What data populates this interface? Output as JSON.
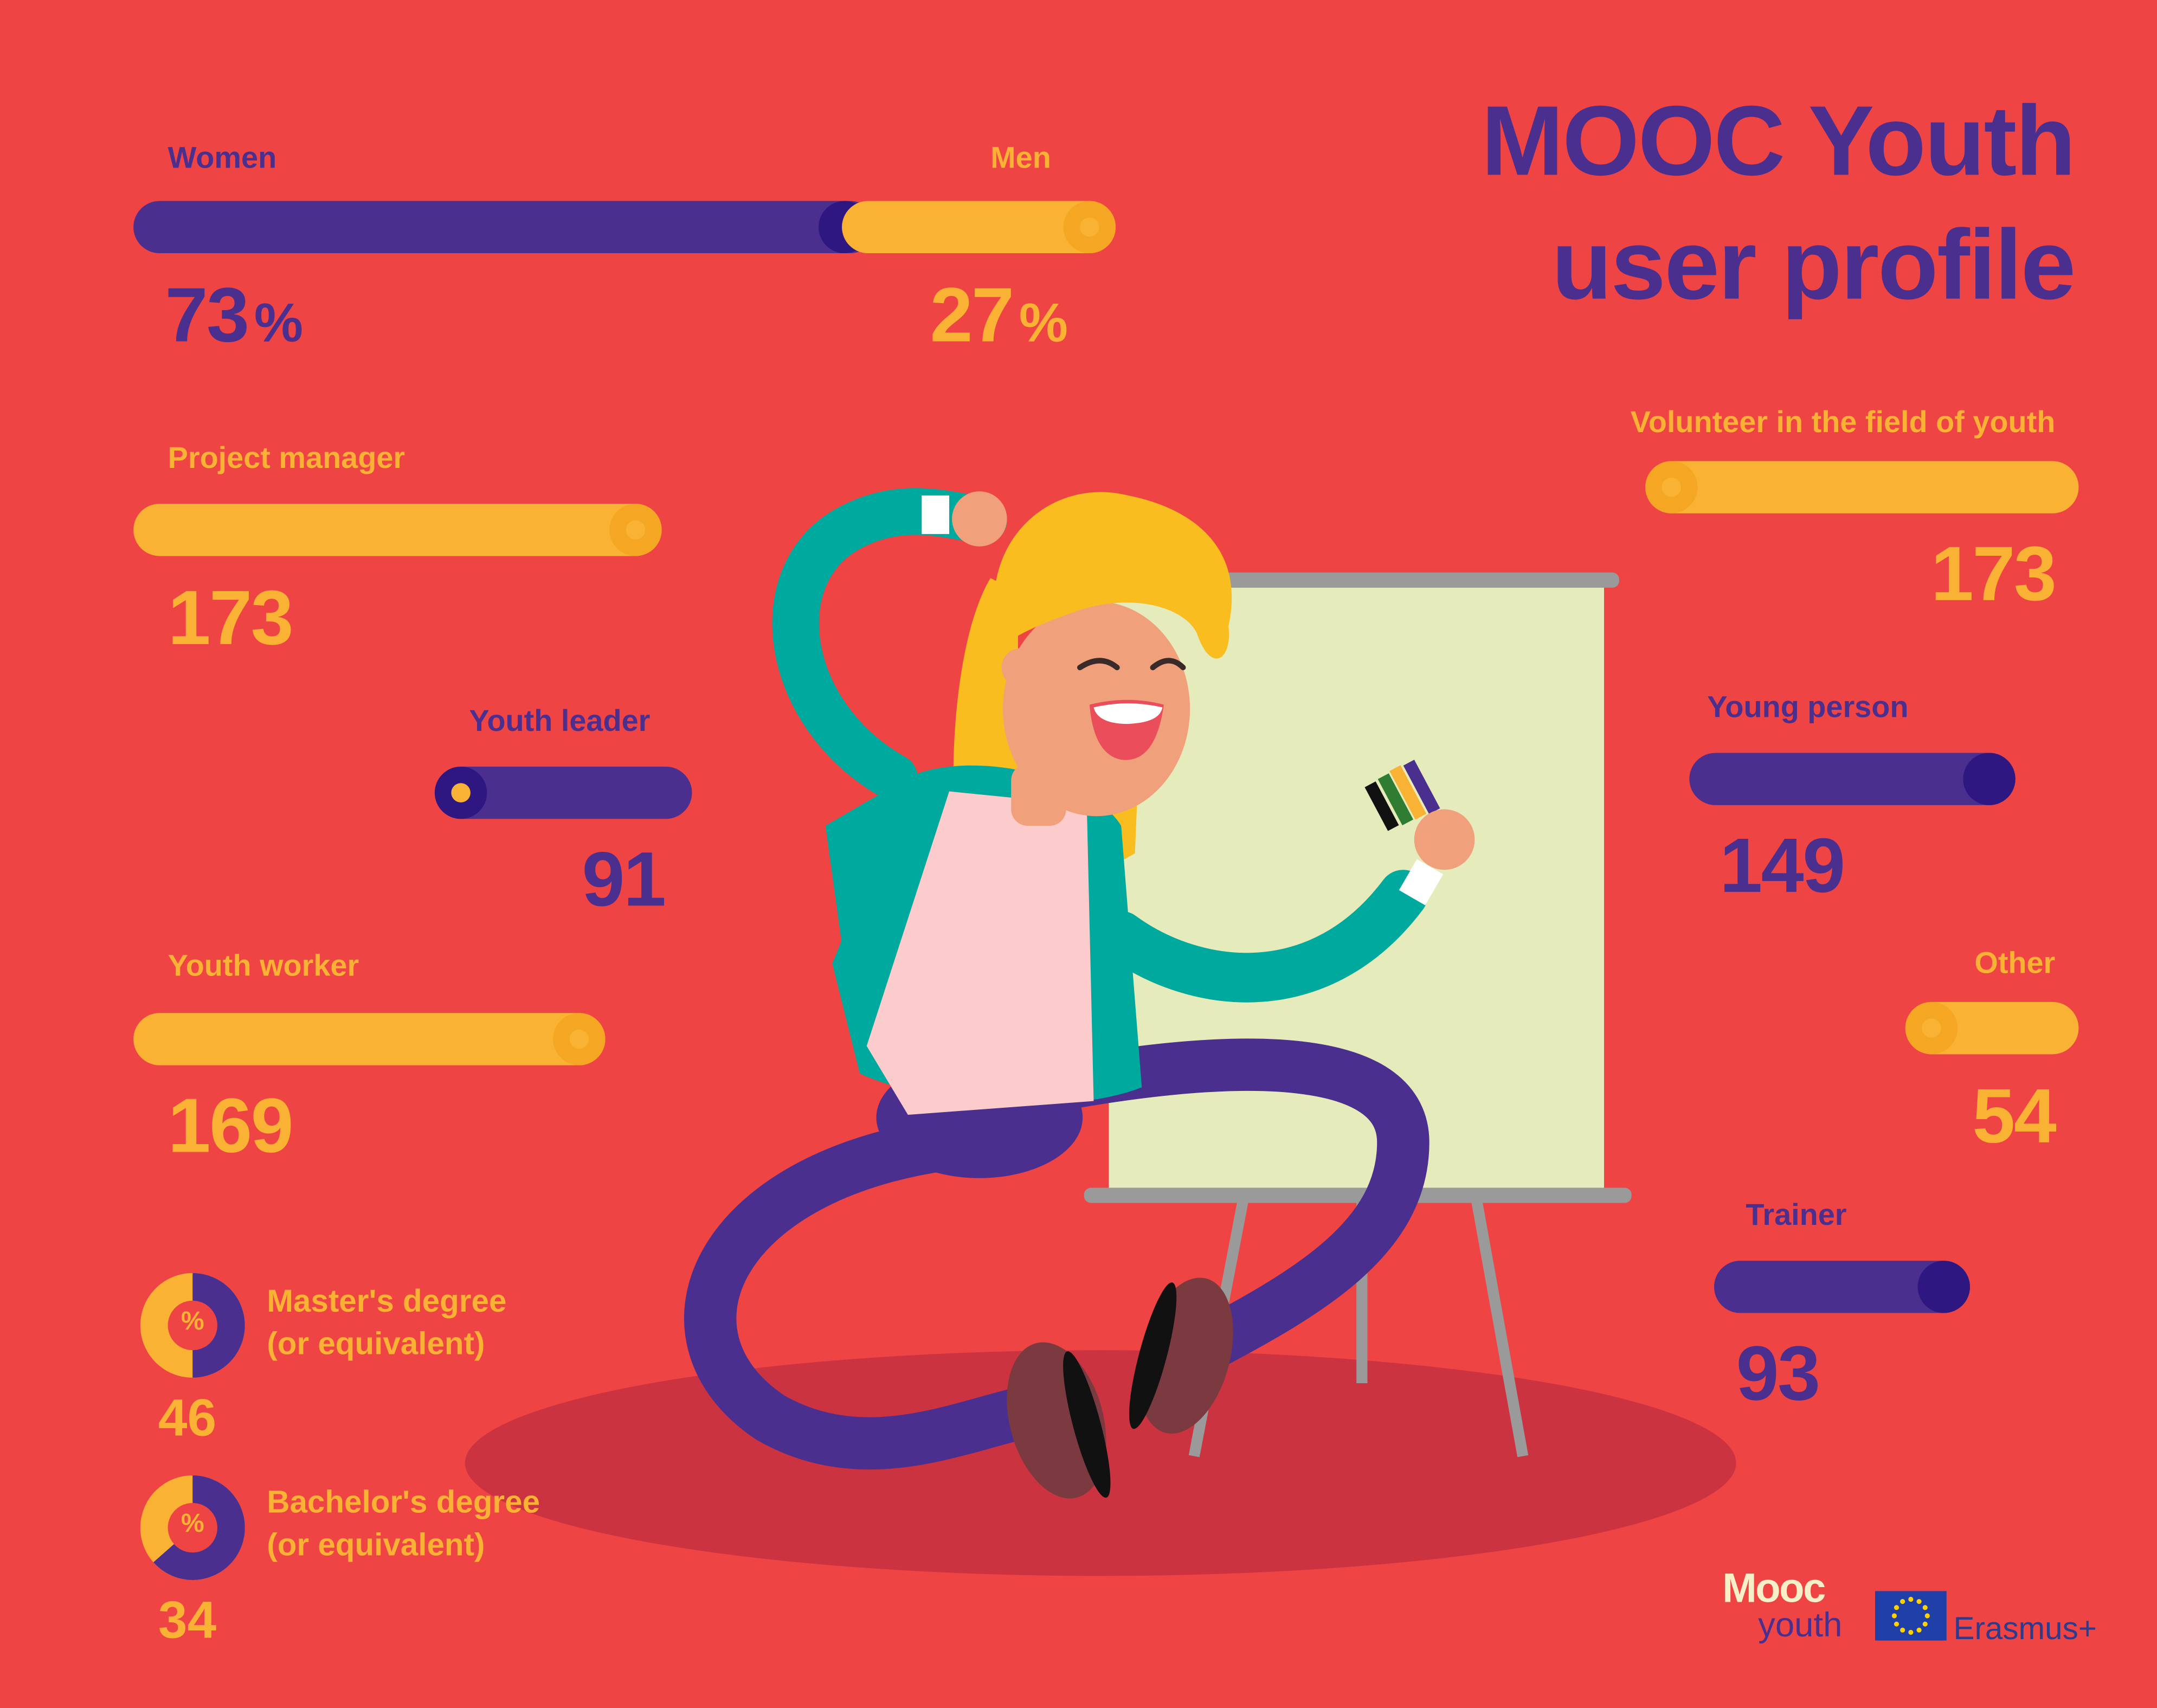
{
  "title": {
    "line1": "MOOC Youth",
    "line2": "user profile"
  },
  "gender": {
    "women": {
      "label": "Women",
      "value": "73",
      "unit": "%",
      "share": 0.73
    },
    "men": {
      "label": "Men",
      "value": "27",
      "unit": "%",
      "share": 0.27
    }
  },
  "roles": {
    "project_manager": {
      "label": "Project manager",
      "value": "173"
    },
    "youth_leader": {
      "label": "Youth leader",
      "value": "91"
    },
    "youth_worker": {
      "label": "Youth worker",
      "value": "169"
    },
    "volunteer": {
      "label": "Volunteer in the field of youth",
      "value": "173"
    },
    "young_person": {
      "label": "Young person",
      "value": "149"
    },
    "other": {
      "label": "Other",
      "value": "54"
    },
    "trainer": {
      "label": "Trainer",
      "value": "93"
    }
  },
  "degrees": {
    "master": {
      "line1": "Master's degree",
      "line2": "(or equivalent)",
      "value": "46",
      "symbol": "%"
    },
    "bachelor": {
      "line1": "Bachelor's degree",
      "line2": "(or equivalent)",
      "value": "34",
      "symbol": "%"
    }
  },
  "logos": {
    "mooc": "Mooc",
    "youth": "youth",
    "erasmus": "Erasmus+"
  },
  "colors": {
    "background": "#EF4444",
    "purple": "#4B2F8F",
    "yellow": "#F9B233",
    "teal": "#00A99D",
    "shadow": "#CC3340",
    "board": "#E6EBBB"
  }
}
